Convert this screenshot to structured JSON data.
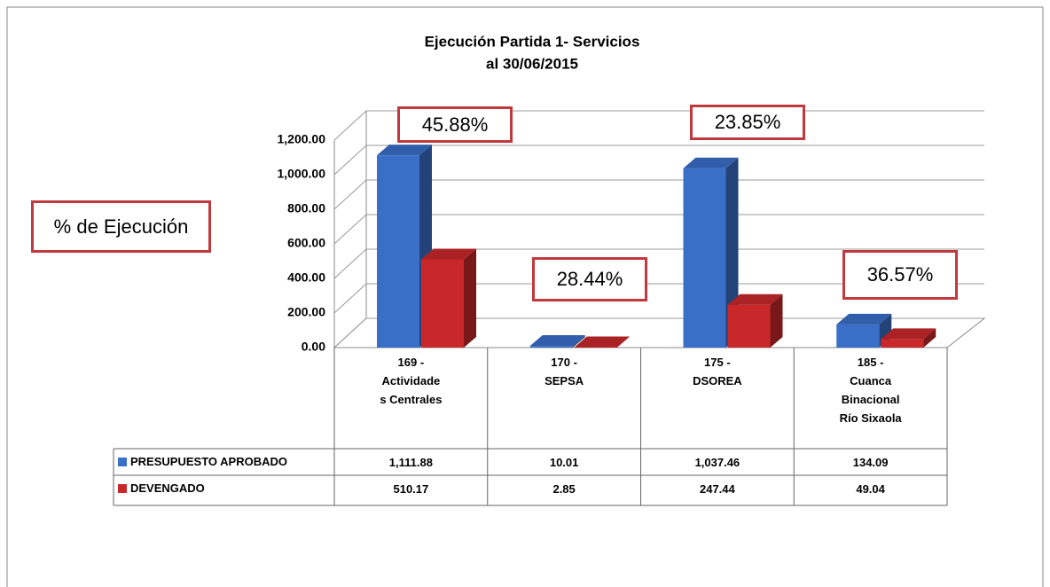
{
  "chart_data": {
    "type": "bar3d",
    "title": "Ejecución Partida 1- Servicios",
    "subtitle": "al 30/06/2015",
    "categories": [
      "169 -\nActividade\ns Centrales",
      "170 -\nSEPSA",
      "175 -\nDSOREA",
      "185 -\nCuanca\nBinacional\nRío Sixaola"
    ],
    "series": [
      {
        "name": "PRESUPUESTO APROBADO",
        "color": "#3a6fc8",
        "values": [
          1111.88,
          10.01,
          1037.46,
          134.09
        ],
        "value_labels": [
          "1,111.88",
          "10.01",
          "1,037.46",
          "134.09"
        ]
      },
      {
        "name": "DEVENGADO",
        "color": "#c8282a",
        "values": [
          510.17,
          2.85,
          247.44,
          49.04
        ],
        "value_labels": [
          "510.17",
          "2.85",
          "247.44",
          "49.04"
        ]
      }
    ],
    "ylim": [
      0,
      1200
    ],
    "yticks": [
      {
        "value": 0,
        "label": "0.00"
      },
      {
        "value": 200,
        "label": "200.00"
      },
      {
        "value": 400,
        "label": "400.00"
      },
      {
        "value": 600,
        "label": "600.00"
      },
      {
        "value": 800,
        "label": "800.00"
      },
      {
        "value": 1000,
        "label": "1,000.00"
      },
      {
        "value": 1200,
        "label": "1,200.00"
      }
    ],
    "grid": true,
    "annotations": [
      "% de Ejecución",
      "45.88%",
      "28.44%",
      "23.85%",
      "36.57%"
    ]
  }
}
